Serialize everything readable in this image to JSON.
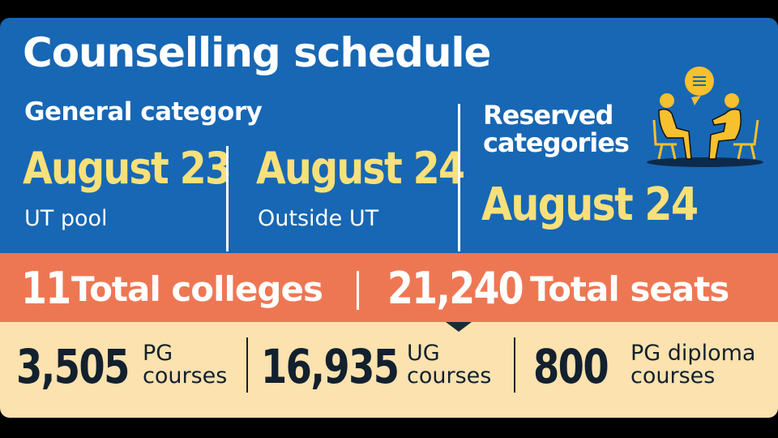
{
  "title": "Counselling schedule",
  "general": {
    "label": "General category",
    "items": [
      {
        "date": "August 23",
        "label": "UT pool"
      },
      {
        "date": "August 24",
        "label": "Outside UT"
      }
    ]
  },
  "reserved": {
    "label": "Reserved categories",
    "date": "August 24"
  },
  "totals": [
    {
      "number": "11",
      "label": "Total colleges"
    },
    {
      "number": "21,240",
      "label": "Total seats"
    }
  ],
  "breakdown": [
    {
      "number": "3,505",
      "label": "PG courses"
    },
    {
      "number": "16,935",
      "label": "UG courses"
    },
    {
      "number": "800",
      "label": "PG diploma courses"
    }
  ]
}
